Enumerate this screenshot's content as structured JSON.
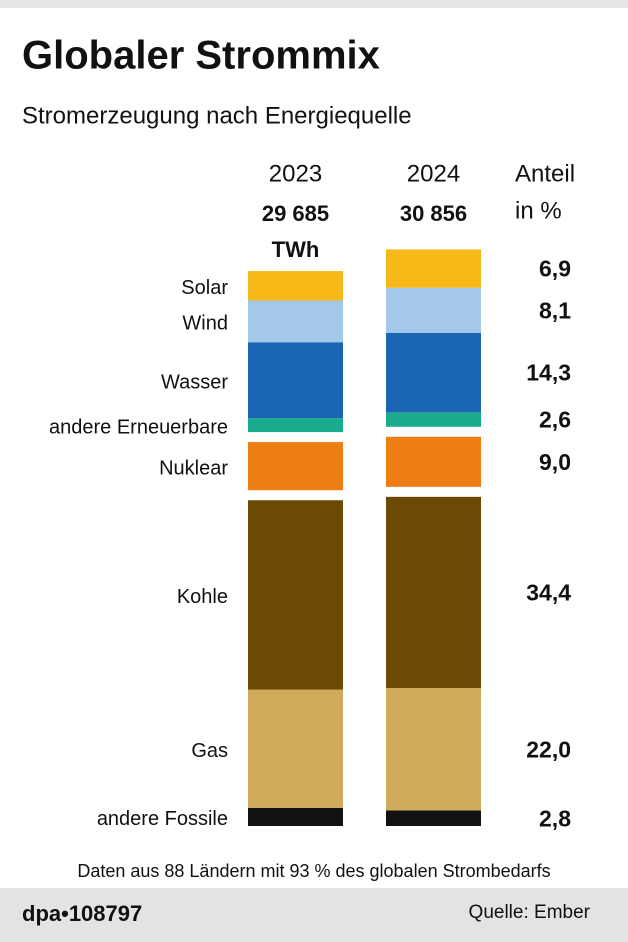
{
  "chart_data": {
    "type": "stacked-bar",
    "title": "Globaler Strommix",
    "subtitle": "Stromerzeugung nach Energiequelle",
    "share_header": [
      "Anteil",
      "in %"
    ],
    "unit": "TWh",
    "categories": [
      "Solar",
      "Wind",
      "Wasser",
      "andere Erneuerbare",
      "Nuklear",
      "Kohle",
      "Gas",
      "andere Fossile"
    ],
    "colors": [
      "#f7b918",
      "#a3c8ea",
      "#1a66b5",
      "#1aaa8c",
      "#ee7d13",
      "#6c4a05",
      "#cfab5a",
      "#111111"
    ],
    "series": [
      {
        "name": "2023",
        "total": 29685,
        "total_label": "29 685",
        "values": [
          5.5,
          7.8,
          14.2,
          2.6,
          9.0,
          35.4,
          22.1,
          3.4
        ]
      },
      {
        "name": "2024",
        "total": 30856,
        "total_label": "30 856",
        "values": [
          6.9,
          8.1,
          14.3,
          2.6,
          9.0,
          34.4,
          22.0,
          2.8
        ],
        "value_labels": [
          "6,9",
          "8,1",
          "14,3",
          "2,6",
          "9,0",
          "34,4",
          "22,0",
          "2,8"
        ]
      }
    ],
    "note": "Daten aus 88 Ländern mit 93 % des globalen Strombedarfs",
    "credit": "dpa•108797",
    "source": "Quelle: Ember"
  }
}
